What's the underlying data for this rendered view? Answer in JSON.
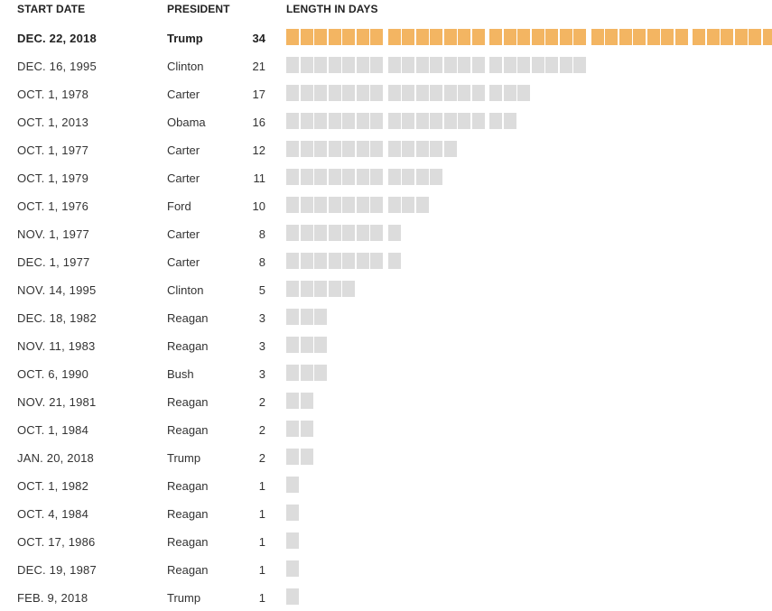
{
  "headers": {
    "start_date": "START DATE",
    "president": "PRESIDENT",
    "length": "LENGTH IN DAYS"
  },
  "colors": {
    "highlight": "#f3b562",
    "bar": "#dcdcdc",
    "text": "#333333"
  },
  "chart_data": {
    "type": "bar",
    "orientation": "horizontal",
    "unit_blocks": true,
    "title": "",
    "xlabel": "LENGTH IN DAYS",
    "ylabel": "",
    "columns": [
      "START DATE",
      "PRESIDENT",
      "LENGTH IN DAYS"
    ],
    "highlight_index": 0,
    "rows": [
      {
        "start_date": "DEC. 22, 2018",
        "president": "Trump",
        "days": 34
      },
      {
        "start_date": "DEC. 16, 1995",
        "president": "Clinton",
        "days": 21
      },
      {
        "start_date": "OCT. 1, 1978",
        "president": "Carter",
        "days": 17
      },
      {
        "start_date": "OCT. 1, 2013",
        "president": "Obama",
        "days": 16
      },
      {
        "start_date": "OCT. 1, 1977",
        "president": "Carter",
        "days": 12
      },
      {
        "start_date": "OCT. 1, 1979",
        "president": "Carter",
        "days": 11
      },
      {
        "start_date": "OCT. 1, 1976",
        "president": "Ford",
        "days": 10
      },
      {
        "start_date": "NOV. 1, 1977",
        "president": "Carter",
        "days": 8
      },
      {
        "start_date": "DEC. 1, 1977",
        "president": "Carter",
        "days": 8
      },
      {
        "start_date": "NOV. 14, 1995",
        "president": "Clinton",
        "days": 5
      },
      {
        "start_date": "DEC. 18, 1982",
        "president": "Reagan",
        "days": 3
      },
      {
        "start_date": "NOV. 11, 1983",
        "president": "Reagan",
        "days": 3
      },
      {
        "start_date": "OCT. 6, 1990",
        "president": "Bush",
        "days": 3
      },
      {
        "start_date": "NOV. 21, 1981",
        "president": "Reagan",
        "days": 2
      },
      {
        "start_date": "OCT. 1, 1984",
        "president": "Reagan",
        "days": 2
      },
      {
        "start_date": "JAN. 20, 2018",
        "president": "Trump",
        "days": 2
      },
      {
        "start_date": "OCT. 1, 1982",
        "president": "Reagan",
        "days": 1
      },
      {
        "start_date": "OCT. 4, 1984",
        "president": "Reagan",
        "days": 1
      },
      {
        "start_date": "OCT. 17, 1986",
        "president": "Reagan",
        "days": 1
      },
      {
        "start_date": "DEC. 19, 1987",
        "president": "Reagan",
        "days": 1
      },
      {
        "start_date": "FEB. 9, 2018",
        "president": "Trump",
        "days": 1
      }
    ]
  }
}
